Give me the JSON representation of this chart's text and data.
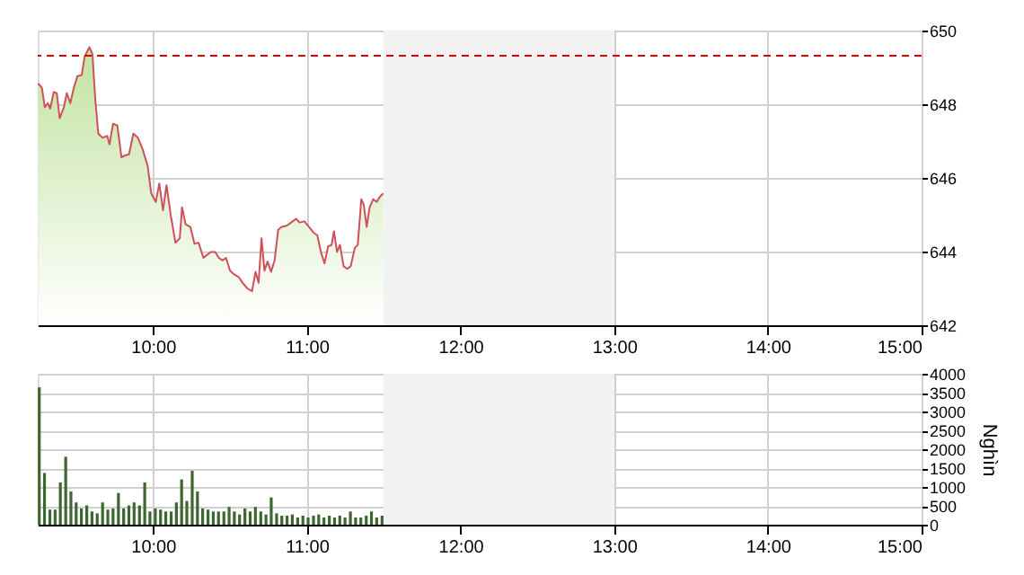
{
  "chart_data": [
    {
      "type": "area",
      "xlim": [
        9.25,
        15
      ],
      "ylim": [
        642,
        650
      ],
      "yticks": [
        642,
        644,
        646,
        648,
        650
      ],
      "xticks": [
        {
          "value": 10,
          "label": "10:00"
        },
        {
          "value": 11,
          "label": "11:00"
        },
        {
          "value": 12,
          "label": "12:00"
        },
        {
          "value": 13,
          "label": "13:00"
        },
        {
          "value": 14,
          "label": "14:00"
        },
        {
          "value": 15,
          "label": "15:00"
        }
      ],
      "grid": true,
      "bands": [
        {
          "axis": "x",
          "from": 11.5,
          "to": 13,
          "label": null,
          "color": "#f2f2f2"
        }
      ],
      "ref_lines": [
        {
          "axis": "y",
          "value": 649.32,
          "label": null,
          "color": "#dd0000",
          "line_style": "dashed"
        }
      ],
      "series": [
        {
          "color": "#d0505a",
          "x": [
            9.253,
            9.277,
            9.296,
            9.316,
            9.331,
            9.354,
            9.374,
            9.393,
            9.42,
            9.439,
            9.462,
            9.485,
            9.508,
            9.536,
            9.555,
            9.586,
            9.606,
            9.624,
            9.644,
            9.671,
            9.702,
            9.717,
            9.74,
            9.768,
            9.795,
            9.818,
            9.844,
            9.872,
            9.902,
            9.934,
            9.965,
            9.988,
            10.018,
            10.041,
            10.065,
            10.088,
            10.116,
            10.146,
            10.174,
            10.189,
            10.212,
            10.243,
            10.27,
            10.296,
            10.328,
            10.351,
            10.377,
            10.405,
            10.428,
            10.452,
            10.475,
            10.501,
            10.528,
            10.559,
            10.583,
            10.614,
            10.644,
            10.667,
            10.687,
            10.706,
            10.725,
            10.745,
            10.768,
            10.791,
            10.814,
            10.837,
            10.869,
            10.899,
            10.93,
            10.953,
            10.985,
            11.015,
            11.043,
            11.069,
            11.092,
            11.116,
            11.139,
            11.162,
            11.177,
            11.197,
            11.216,
            11.24,
            11.263,
            11.286,
            11.313,
            11.332,
            11.355,
            11.371,
            11.39,
            11.409,
            11.432,
            11.455,
            11.478,
            11.498
          ],
          "values": [
            648.56,
            648.45,
            647.92,
            648.03,
            647.88,
            648.33,
            648.3,
            647.62,
            647.92,
            648.3,
            648.03,
            648.45,
            648.76,
            648.79,
            649.29,
            649.55,
            649.36,
            648.15,
            647.2,
            647.09,
            647.14,
            646.91,
            647.47,
            647.42,
            646.56,
            646.61,
            646.64,
            647.2,
            647.09,
            646.76,
            646.33,
            645.58,
            645.35,
            645.85,
            645.12,
            645.8,
            644.97,
            644.24,
            644.36,
            645.2,
            644.74,
            644.67,
            644.21,
            644.24,
            643.83,
            643.91,
            643.99,
            643.99,
            643.83,
            643.76,
            643.83,
            643.48,
            643.38,
            643.3,
            643.15,
            643.0,
            642.92,
            643.45,
            643.15,
            644.36,
            643.48,
            643.73,
            643.45,
            643.76,
            644.59,
            644.67,
            644.7,
            644.79,
            644.89,
            644.79,
            644.82,
            644.67,
            644.52,
            644.44,
            643.99,
            643.68,
            644.14,
            644.18,
            644.55,
            643.99,
            644.18,
            643.6,
            643.53,
            643.6,
            644.1,
            644.18,
            645.42,
            645.27,
            644.67,
            645.2,
            645.42,
            645.35,
            645.5,
            645.58
          ]
        }
      ]
    },
    {
      "type": "bar",
      "xlim": [
        9.25,
        15
      ],
      "ylim": [
        0,
        4000
      ],
      "yticks": [
        0,
        500,
        1000,
        1500,
        2000,
        2500,
        3000,
        3500,
        4000
      ],
      "ylabel": "Nghìn",
      "xticks": [
        {
          "value": 10,
          "label": "10:00"
        },
        {
          "value": 11,
          "label": "11:00"
        },
        {
          "value": 12,
          "label": "12:00"
        },
        {
          "value": 13,
          "label": "13:00"
        },
        {
          "value": 14,
          "label": "14:00"
        },
        {
          "value": 15,
          "label": "15:00"
        }
      ],
      "grid": true,
      "bands": [
        {
          "axis": "x",
          "from": 11.5,
          "to": 13,
          "label": null,
          "color": "#f2f2f2"
        }
      ],
      "series": [
        {
          "color": "#3d6630",
          "x": [
            9.26,
            9.294,
            9.329,
            9.363,
            9.397,
            9.432,
            9.466,
            9.5,
            9.534,
            9.569,
            9.603,
            9.637,
            9.672,
            9.706,
            9.74,
            9.775,
            9.809,
            9.843,
            9.877,
            9.912,
            9.946,
            9.98,
            10.015,
            10.049,
            10.083,
            10.118,
            10.152,
            10.186,
            10.22,
            10.255,
            10.289,
            10.323,
            10.358,
            10.392,
            10.426,
            10.461,
            10.495,
            10.529,
            10.563,
            10.598,
            10.632,
            10.666,
            10.701,
            10.735,
            10.769,
            10.804,
            10.838,
            10.872,
            10.906,
            10.941,
            10.975,
            11.009,
            11.044,
            11.078,
            11.112,
            11.147,
            11.181,
            11.215,
            11.249,
            11.284,
            11.318,
            11.352,
            11.387,
            11.421,
            11.455,
            11.49
          ],
          "values": [
            3640,
            1370,
            400,
            400,
            1120,
            1800,
            880,
            590,
            430,
            510,
            350,
            300,
            590,
            400,
            430,
            840,
            430,
            510,
            590,
            510,
            1120,
            350,
            430,
            400,
            350,
            350,
            590,
            1200,
            630,
            1430,
            880,
            430,
            400,
            350,
            350,
            350,
            470,
            350,
            270,
            430,
            350,
            470,
            350,
            270,
            720,
            300,
            240,
            240,
            270,
            190,
            240,
            190,
            240,
            270,
            190,
            240,
            190,
            240,
            190,
            350,
            190,
            190,
            240,
            350,
            190,
            240
          ]
        }
      ]
    }
  ]
}
